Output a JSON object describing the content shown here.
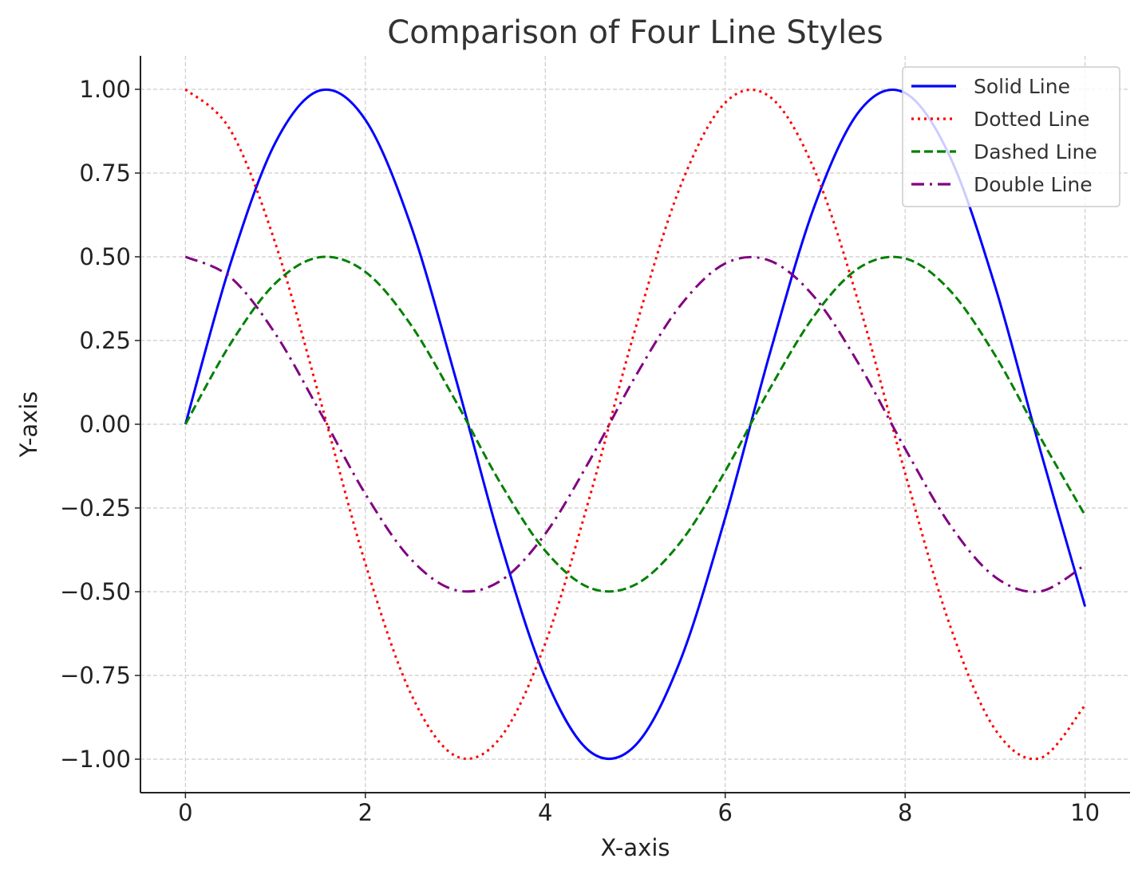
{
  "chart_data": {
    "type": "line",
    "title": "Comparison of Four Line Styles",
    "xlabel": "X-axis",
    "ylabel": "Y-axis",
    "xlim": [
      -0.5,
      10.5
    ],
    "ylim": [
      -1.1,
      1.1
    ],
    "x_ticks": [
      0,
      2,
      4,
      6,
      8,
      10
    ],
    "x_tick_labels": [
      "0",
      "2",
      "4",
      "6",
      "8",
      "10"
    ],
    "y_ticks": [
      1.0,
      0.75,
      0.5,
      0.25,
      0.0,
      -0.25,
      -0.5,
      -0.75,
      -1.0
    ],
    "y_tick_labels": [
      "1.00",
      "0.75",
      "0.50",
      "0.25",
      "0.00",
      "−0.25",
      "−0.50",
      "−0.75",
      "−1.00"
    ],
    "grid": true,
    "legend_position": "top-right",
    "x": [
      0,
      0.5,
      1,
      1.5,
      2,
      2.5,
      3,
      3.5,
      4,
      4.5,
      5,
      5.5,
      6,
      6.5,
      7,
      7.5,
      8,
      8.5,
      9,
      9.5,
      10
    ],
    "series": [
      {
        "name": "Solid Line",
        "color": "#0000ff",
        "style": "solid",
        "values": [
          0.0,
          0.479,
          0.841,
          0.997,
          0.909,
          0.598,
          0.141,
          -0.351,
          -0.757,
          -0.978,
          -0.959,
          -0.706,
          -0.279,
          0.215,
          0.657,
          0.938,
          0.989,
          0.798,
          0.412,
          -0.075,
          -0.544
        ]
      },
      {
        "name": "Dotted Line",
        "color": "#ff0000",
        "style": "dotted",
        "values": [
          1.0,
          0.878,
          0.54,
          0.071,
          -0.416,
          -0.801,
          -0.99,
          -0.936,
          -0.654,
          -0.211,
          0.284,
          0.709,
          0.96,
          0.977,
          0.754,
          0.347,
          -0.146,
          -0.602,
          -0.911,
          -0.997,
          -0.839
        ]
      },
      {
        "name": "Dashed Line",
        "color": "#008000",
        "style": "dashed",
        "values": [
          0.0,
          0.24,
          0.421,
          0.499,
          0.455,
          0.299,
          0.071,
          -0.175,
          -0.378,
          -0.489,
          -0.479,
          -0.353,
          -0.14,
          0.108,
          0.328,
          0.469,
          0.495,
          0.399,
          0.206,
          -0.038,
          -0.272
        ]
      },
      {
        "name": "Double Line",
        "color": "#800080",
        "style": "dashdot",
        "values": [
          0.5,
          0.439,
          0.27,
          0.035,
          -0.208,
          -0.401,
          -0.495,
          -0.468,
          -0.327,
          -0.105,
          0.142,
          0.354,
          0.48,
          0.488,
          0.377,
          0.173,
          -0.073,
          -0.301,
          -0.456,
          -0.499,
          -0.42
        ]
      }
    ]
  }
}
